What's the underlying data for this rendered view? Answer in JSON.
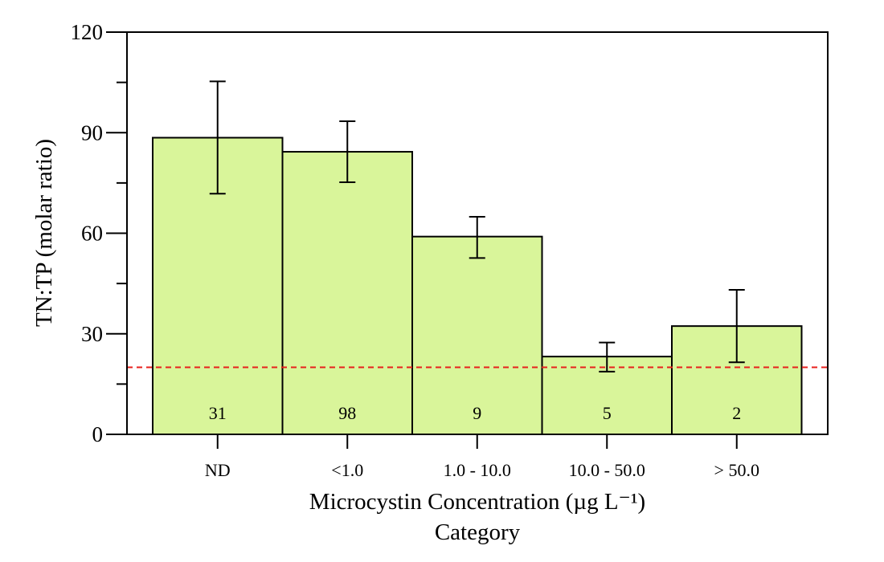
{
  "chart_data": {
    "type": "bar",
    "categories": [
      "ND",
      "<1.0",
      "1.0 - 10.0",
      "10.0 - 50.0",
      "> 50.0"
    ],
    "values": [
      88.5,
      84.3,
      59.0,
      23.2,
      32.3
    ],
    "error_low": [
      71.8,
      75.2,
      52.6,
      18.7,
      21.5
    ],
    "error_high": [
      105.3,
      93.4,
      64.9,
      27.4,
      43.1
    ],
    "n_labels": [
      "31",
      "98",
      "9",
      "5",
      "2"
    ],
    "reference_line": {
      "y": 20,
      "color": "#e8201c",
      "style": "dashed"
    },
    "yticks": [
      0,
      30,
      60,
      90,
      120
    ],
    "ylim": [
      0,
      120
    ],
    "ylabel": "TN:TP (molar ratio)",
    "xlabel_line1": "Microcystin Concentration (µg L⁻¹)",
    "xlabel_line2": "Category",
    "bar_color": "#d9f59a",
    "bar_stroke": "#000000",
    "grid": false,
    "legend": "none"
  }
}
